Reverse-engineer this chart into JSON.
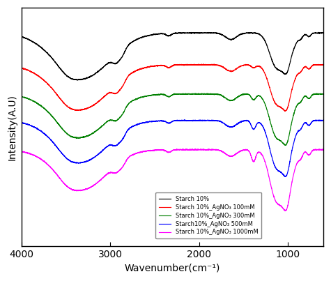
{
  "xlabel": "Wavenumber(cm⁻¹)",
  "ylabel": "Intensity(A.U)",
  "xlim": [
    4000,
    600
  ],
  "x_ticks": [
    4000,
    3000,
    2000,
    1000
  ],
  "legend_labels": [
    "Starch 10%",
    "Starch 10%_AgNO₃ 100mM",
    "Starch 10%_AgNO₃ 300mM",
    "Starch10%_AgNO₃ 500mM",
    "Starch 10%_AgNO₃ 1000mM"
  ],
  "colors": [
    "black",
    "red",
    "green",
    "blue",
    "magenta"
  ],
  "background": "white",
  "figsize": [
    4.75,
    4.03
  ],
  "dpi": 100,
  "linewidth": 0.85
}
